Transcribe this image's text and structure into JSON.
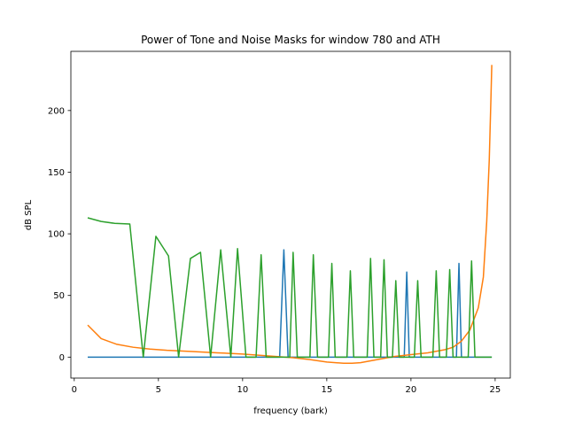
{
  "chart_data": {
    "type": "line",
    "title": "Power of Tone and Noise Masks for window 780 and ATH",
    "xlabel": "frequency (bark)",
    "ylabel": "dB SPL",
    "xlim": [
      -0.2,
      25.9
    ],
    "ylim": [
      -17,
      248
    ],
    "xticks": [
      0,
      5,
      10,
      15,
      20,
      25
    ],
    "yticks": [
      0,
      50,
      100,
      150,
      200
    ],
    "grid": false,
    "colors": [
      "#1f77b4",
      "#ff7f0e",
      "#2ca02c"
    ],
    "series": [
      {
        "points": [
          [
            0.8,
            0
          ],
          [
            12.2,
            0
          ],
          [
            12.45,
            87
          ],
          [
            12.7,
            0
          ],
          [
            19.6,
            0
          ],
          [
            19.75,
            69
          ],
          [
            19.9,
            0
          ],
          [
            22.7,
            0
          ],
          [
            22.85,
            76
          ],
          [
            23.0,
            0
          ],
          [
            24.8,
            0
          ]
        ]
      },
      {
        "points": [
          [
            0.8,
            26
          ],
          [
            1.6,
            15
          ],
          [
            2.5,
            10.5
          ],
          [
            3.5,
            8
          ],
          [
            4.5,
            6.5
          ],
          [
            5.5,
            5.5
          ],
          [
            7,
            4.5
          ],
          [
            8.5,
            3.5
          ],
          [
            10,
            2.5
          ],
          [
            11,
            1.5
          ],
          [
            12,
            0.5
          ],
          [
            13,
            -0.5
          ],
          [
            14,
            -2
          ],
          [
            15,
            -4
          ],
          [
            16,
            -5
          ],
          [
            16.5,
            -5
          ],
          [
            17,
            -4.5
          ],
          [
            18,
            -2
          ],
          [
            19,
            0.5
          ],
          [
            20,
            2
          ],
          [
            21,
            3.5
          ],
          [
            22,
            6
          ],
          [
            22.5,
            8
          ],
          [
            23,
            13
          ],
          [
            23.5,
            22
          ],
          [
            24,
            40
          ],
          [
            24.3,
            65
          ],
          [
            24.5,
            110
          ],
          [
            24.65,
            160
          ],
          [
            24.75,
            210
          ],
          [
            24.8,
            237
          ]
        ]
      },
      {
        "points": [
          [
            0.8,
            113
          ],
          [
            1.6,
            110
          ],
          [
            2.4,
            108.5
          ],
          [
            3.3,
            108
          ],
          [
            4.1,
            0
          ],
          [
            4.85,
            98
          ],
          [
            5.6,
            82
          ],
          [
            6.2,
            0
          ],
          [
            6.9,
            80
          ],
          [
            7.5,
            85
          ],
          [
            8.1,
            0
          ],
          [
            8.7,
            87
          ],
          [
            9.3,
            0
          ],
          [
            9.7,
            88
          ],
          [
            10.2,
            0
          ],
          [
            10.8,
            0
          ],
          [
            11.1,
            83
          ],
          [
            11.4,
            0
          ],
          [
            12.8,
            0
          ],
          [
            13.0,
            85
          ],
          [
            13.25,
            0
          ],
          [
            14.0,
            0
          ],
          [
            14.2,
            83
          ],
          [
            14.45,
            0
          ],
          [
            15.1,
            0
          ],
          [
            15.3,
            76
          ],
          [
            15.5,
            0
          ],
          [
            16.2,
            0
          ],
          [
            16.4,
            70
          ],
          [
            16.6,
            0
          ],
          [
            17.4,
            0
          ],
          [
            17.6,
            80
          ],
          [
            17.8,
            0
          ],
          [
            18.2,
            0
          ],
          [
            18.4,
            79
          ],
          [
            18.6,
            0
          ],
          [
            18.9,
            0
          ],
          [
            19.1,
            62
          ],
          [
            19.3,
            0
          ],
          [
            20.2,
            0
          ],
          [
            20.4,
            62
          ],
          [
            20.6,
            0
          ],
          [
            21.3,
            0
          ],
          [
            21.5,
            70
          ],
          [
            21.7,
            0
          ],
          [
            22.1,
            0
          ],
          [
            22.3,
            71
          ],
          [
            22.5,
            0
          ],
          [
            23.4,
            0
          ],
          [
            23.6,
            78
          ],
          [
            23.8,
            0
          ],
          [
            24.8,
            0
          ]
        ]
      }
    ]
  }
}
